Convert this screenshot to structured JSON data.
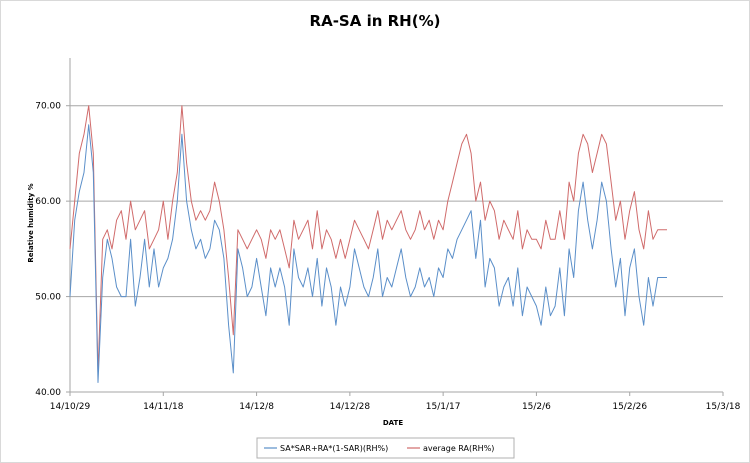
{
  "chart_data": {
    "type": "line",
    "title": "RA-SA in RH(%)",
    "xlabel": "DATE",
    "ylabel": "Relative humidity %",
    "ylim": [
      40,
      75
    ],
    "yticks": [
      "40.00",
      "50.00",
      "60.00",
      "70.00"
    ],
    "ytick_values": [
      40,
      50,
      60,
      70
    ],
    "gridlines": [
      50,
      60,
      70
    ],
    "xlim": [
      0,
      140
    ],
    "xticks": [
      "14/10/29",
      "14/11/18",
      "14/12/8",
      "14/12/28",
      "15/1/17",
      "15/2/6",
      "15/2/26",
      "15/3/18"
    ],
    "xtick_values": [
      0,
      20,
      40,
      60,
      80,
      100,
      120,
      140
    ],
    "legend_position": "bottom",
    "series": [
      {
        "name": "SA*SAR+RA*(1-SAR)(RH%)",
        "color": "#5b8fc9",
        "x": [
          0,
          1,
          2,
          3,
          4,
          5,
          6,
          7,
          8,
          9,
          10,
          11,
          12,
          13,
          14,
          15,
          16,
          17,
          18,
          19,
          20,
          21,
          22,
          23,
          24,
          25,
          26,
          27,
          28,
          29,
          30,
          31,
          32,
          33,
          34,
          35,
          36,
          37,
          38,
          39,
          40,
          41,
          42,
          43,
          44,
          45,
          46,
          47,
          48,
          49,
          50,
          51,
          52,
          53,
          54,
          55,
          56,
          57,
          58,
          59,
          60,
          61,
          62,
          63,
          64,
          65,
          66,
          67,
          68,
          69,
          70,
          71,
          72,
          73,
          74,
          75,
          76,
          77,
          78,
          79,
          80,
          81,
          82,
          83,
          84,
          85,
          86,
          87,
          88,
          89,
          90,
          91,
          92,
          93,
          94,
          95,
          96,
          97,
          98,
          99,
          100,
          101,
          102,
          103,
          104,
          105,
          106,
          107,
          108,
          109,
          110,
          111,
          112,
          113,
          114,
          115,
          116,
          117,
          118,
          119,
          120,
          121,
          122,
          123,
          124,
          125,
          126,
          127,
          128
        ],
        "values": [
          50,
          58,
          61,
          63,
          68,
          63,
          41,
          52,
          56,
          54,
          51,
          50,
          50,
          56,
          49,
          52,
          56,
          51,
          55,
          51,
          53,
          54,
          56,
          60,
          67,
          60,
          57,
          55,
          56,
          54,
          55,
          58,
          57,
          54,
          47,
          42,
          55,
          53,
          50,
          51,
          54,
          51,
          48,
          53,
          51,
          53,
          51,
          47,
          55,
          52,
          51,
          53,
          50,
          54,
          49,
          53,
          51,
          47,
          51,
          49,
          51,
          55,
          53,
          51,
          50,
          52,
          55,
          50,
          52,
          51,
          53,
          55,
          52,
          50,
          51,
          53,
          51,
          52,
          50,
          53,
          52,
          55,
          54,
          56,
          57,
          58,
          59,
          54,
          58,
          51,
          54,
          53,
          49,
          51,
          52,
          49,
          53,
          48,
          51,
          50,
          49,
          47,
          51,
          48,
          49,
          53,
          48,
          55,
          52,
          59,
          62,
          58,
          55,
          58,
          62,
          60,
          55,
          51,
          54,
          48,
          53,
          55,
          50,
          47,
          52,
          49,
          52,
          52,
          52
        ]
      },
      {
        "name": "average RA(RH%)",
        "color": "#d06b6b",
        "x": [
          0,
          1,
          2,
          3,
          4,
          5,
          6,
          7,
          8,
          9,
          10,
          11,
          12,
          13,
          14,
          15,
          16,
          17,
          18,
          19,
          20,
          21,
          22,
          23,
          24,
          25,
          26,
          27,
          28,
          29,
          30,
          31,
          32,
          33,
          34,
          35,
          36,
          37,
          38,
          39,
          40,
          41,
          42,
          43,
          44,
          45,
          46,
          47,
          48,
          49,
          50,
          51,
          52,
          53,
          54,
          55,
          56,
          57,
          58,
          59,
          60,
          61,
          62,
          63,
          64,
          65,
          66,
          67,
          68,
          69,
          70,
          71,
          72,
          73,
          74,
          75,
          76,
          77,
          78,
          79,
          80,
          81,
          82,
          83,
          84,
          85,
          86,
          87,
          88,
          89,
          90,
          91,
          92,
          93,
          94,
          95,
          96,
          97,
          98,
          99,
          100,
          101,
          102,
          103,
          104,
          105,
          106,
          107,
          108,
          109,
          110,
          111,
          112,
          113,
          114,
          115,
          116,
          117,
          118,
          119,
          120,
          121,
          122,
          123,
          124,
          125,
          126,
          127,
          128
        ],
        "values": [
          55,
          60,
          65,
          67,
          70,
          65,
          42,
          56,
          57,
          55,
          58,
          59,
          56,
          60,
          57,
          58,
          59,
          55,
          56,
          57,
          60,
          56,
          60,
          63,
          70,
          64,
          60,
          58,
          59,
          58,
          59,
          62,
          60,
          57,
          52,
          46,
          57,
          56,
          55,
          56,
          57,
          56,
          54,
          57,
          56,
          57,
          55,
          53,
          58,
          56,
          57,
          58,
          55,
          59,
          55,
          57,
          56,
          54,
          56,
          54,
          56,
          58,
          57,
          56,
          55,
          57,
          59,
          56,
          58,
          57,
          58,
          59,
          57,
          56,
          57,
          59,
          57,
          58,
          56,
          58,
          57,
          60,
          62,
          64,
          66,
          67,
          65,
          60,
          62,
          58,
          60,
          59,
          56,
          58,
          57,
          56,
          59,
          55,
          57,
          56,
          56,
          55,
          58,
          56,
          56,
          59,
          56,
          62,
          60,
          65,
          67,
          66,
          63,
          65,
          67,
          66,
          62,
          58,
          60,
          56,
          59,
          61,
          57,
          55,
          59,
          56,
          57,
          57,
          57
        ]
      }
    ]
  }
}
